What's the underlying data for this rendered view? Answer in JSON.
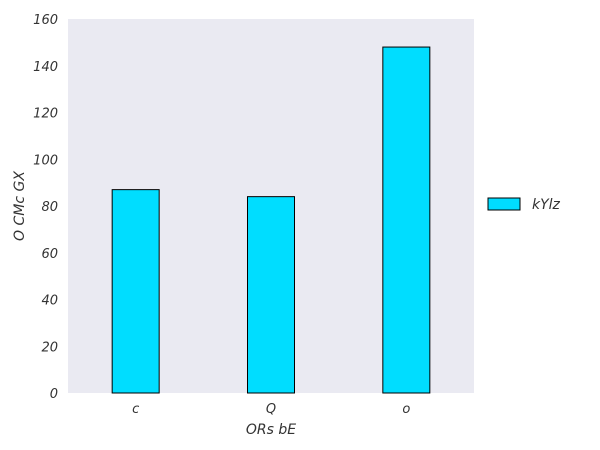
{
  "chart_data": {
    "type": "bar",
    "title": "",
    "xlabel": "ORs bE",
    "ylabel": "O CMc GX",
    "categories": [
      "c",
      "Q",
      "o"
    ],
    "series": [
      {
        "name": "kYlz",
        "values": [
          87,
          84,
          148
        ],
        "color": "#00DDFF"
      }
    ],
    "ylim": [
      0,
      160
    ],
    "yticks": [
      0,
      20,
      40,
      60,
      80,
      100,
      120,
      140,
      160
    ],
    "grid": false,
    "background": "#EAEAF2",
    "edge_color": "#000000",
    "legend_position": "right"
  }
}
